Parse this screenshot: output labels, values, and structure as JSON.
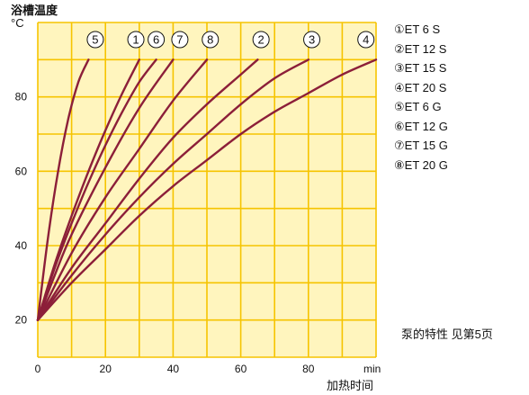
{
  "chart_data": {
    "type": "line",
    "ylabel": "浴槽温度",
    "yunit": "°C",
    "xunit": "min",
    "xlabel": "加热时间",
    "xlim": [
      0,
      100
    ],
    "ylim": [
      10,
      100
    ],
    "x_ticks": [
      0,
      20,
      40,
      60,
      80
    ],
    "y_ticks": [
      20,
      40,
      60,
      80
    ],
    "grid": true,
    "colors": {
      "plot_background": "#fff5be",
      "grid": "#f6c400",
      "curve": "#8c1f39"
    },
    "series": [
      {
        "name": "ET 6 S",
        "marker": "①",
        "x": [
          0,
          5,
          10,
          15,
          20,
          25,
          30
        ],
        "y": [
          20,
          35,
          48,
          60,
          71,
          81,
          90
        ]
      },
      {
        "name": "ET 12 S",
        "marker": "②",
        "x": [
          0,
          10,
          20,
          30,
          40,
          50,
          60,
          65
        ],
        "y": [
          20,
          34,
          46,
          58,
          69,
          78,
          86,
          90
        ]
      },
      {
        "name": "ET 15 S",
        "marker": "③",
        "x": [
          0,
          10,
          20,
          30,
          40,
          50,
          60,
          70,
          80
        ],
        "y": [
          20,
          32,
          43,
          53,
          62,
          70,
          78,
          85,
          90
        ]
      },
      {
        "name": "ET 20 S",
        "marker": "④",
        "x": [
          0,
          10,
          20,
          30,
          40,
          50,
          60,
          70,
          80,
          90,
          100
        ],
        "y": [
          20,
          30,
          39,
          48,
          56,
          63,
          70,
          76,
          81,
          86,
          90
        ]
      },
      {
        "name": "ET 6 G",
        "marker": "⑤",
        "x": [
          0,
          3,
          6,
          9,
          12,
          15
        ],
        "y": [
          20,
          42,
          60,
          74,
          84,
          90
        ]
      },
      {
        "name": "ET 12 G",
        "marker": "⑥",
        "x": [
          0,
          5,
          10,
          15,
          20,
          25,
          30,
          35
        ],
        "y": [
          20,
          34,
          46,
          57,
          67,
          76,
          84,
          90
        ]
      },
      {
        "name": "ET 15 G",
        "marker": "⑦",
        "x": [
          0,
          5,
          10,
          20,
          30,
          40
        ],
        "y": [
          20,
          32,
          43,
          61,
          77,
          90
        ]
      },
      {
        "name": "ET 20 G",
        "marker": "⑧",
        "x": [
          0,
          10,
          20,
          30,
          40,
          50
        ],
        "y": [
          20,
          38,
          53,
          66,
          79,
          90
        ]
      }
    ],
    "curve_markers": [
      {
        "label": "5",
        "x": 17
      },
      {
        "label": "1",
        "x": 29
      },
      {
        "label": "6",
        "x": 35
      },
      {
        "label": "7",
        "x": 42
      },
      {
        "label": "8",
        "x": 51
      },
      {
        "label": "2",
        "x": 66
      },
      {
        "label": "3",
        "x": 81
      },
      {
        "label": "4",
        "x": 97
      }
    ]
  },
  "legend": [
    "①ET 6 S",
    "②ET 12 S",
    "③ET 15 S",
    "④ET 20 S",
    "⑤ET 6 G",
    "⑥ET 12 G",
    "⑦ET 15 G",
    "⑧ET 20 G"
  ],
  "note": "泵的特性  见第5页"
}
